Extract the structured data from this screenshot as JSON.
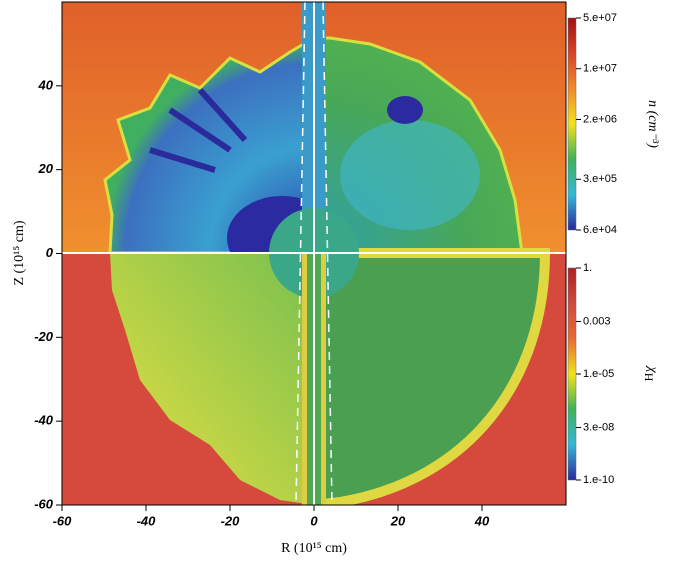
{
  "chart_data": {
    "type": "heatmap",
    "xlabel": "R (10¹⁵ cm)",
    "ylabel": "Z (10¹⁵ cm)",
    "xlim": [
      -60,
      60
    ],
    "ylim": [
      -60,
      60
    ],
    "xticks": [
      -60,
      -40,
      -20,
      0,
      20,
      40
    ],
    "yticks": [
      -60,
      -40,
      -20,
      0,
      20,
      40
    ],
    "colorbars": [
      {
        "label": "n (cm⁻³)",
        "scale": "log",
        "lim": [
          60000,
          50000000
        ],
        "ticks": [
          {
            "value": 50000000,
            "label": "5.e+07"
          },
          {
            "value": 10000000,
            "label": "1.e+07"
          },
          {
            "value": 2000000,
            "label": "2.e+06"
          },
          {
            "value": 300000,
            "label": "3.e+05"
          },
          {
            "value": 60000,
            "label": "6.e+04"
          }
        ],
        "colors": [
          "#2b2a9c",
          "#35b8d6",
          "#3fb25a",
          "#f2e21c",
          "#f08a2a",
          "#d9442a",
          "#a01010"
        ]
      },
      {
        "label": "χ",
        "label_subscript": "H",
        "scale": "log",
        "lim": [
          1e-10,
          1
        ],
        "ticks": [
          {
            "value": 1,
            "label": "1."
          },
          {
            "value": 0.003,
            "label": "0.003"
          },
          {
            "value": 1e-05,
            "label": "1.e-05"
          },
          {
            "value": 3e-08,
            "label": "3.e-08"
          },
          {
            "value": 1e-10,
            "label": "1.e-10"
          }
        ],
        "colors": [
          "#2b2a9c",
          "#35b8d6",
          "#3fb25a",
          "#f2e21c",
          "#e86a35",
          "#d04a40",
          "#b02020"
        ]
      }
    ]
  }
}
